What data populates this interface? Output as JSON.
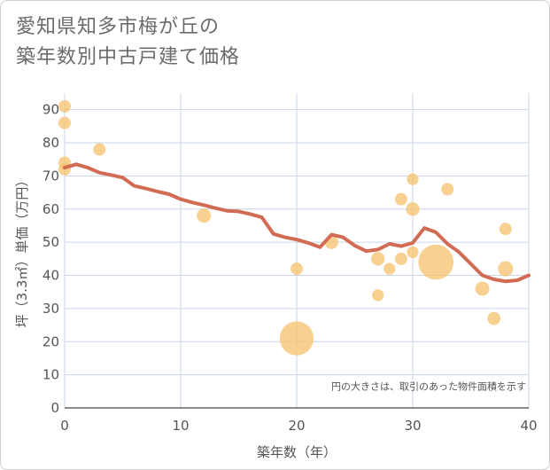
{
  "title_line1": "愛知県知多市梅が丘の",
  "title_line2": "築年数別中古戸建て価格",
  "chart_data": {
    "type": "scatter",
    "title": "愛知県知多市梅が丘の築年数別中古戸建て価格",
    "xlabel": "築年数（年）",
    "ylabel": "坪（3.3㎡）単価（万円）",
    "xlim": [
      0,
      40
    ],
    "ylim": [
      0,
      95
    ],
    "xticks": [
      0,
      10,
      20,
      30,
      40
    ],
    "yticks": [
      0,
      10,
      20,
      30,
      40,
      50,
      60,
      70,
      80,
      90
    ],
    "grid": true,
    "annotation": "円の大きさは、取引のあった物件面積を示す",
    "colors": {
      "bubble": "#f5c26b",
      "line": "#d26b54",
      "grid": "#c9d6e6"
    },
    "bubbles": [
      {
        "x": 0,
        "y": 91,
        "size": 1
      },
      {
        "x": 0,
        "y": 86,
        "size": 1
      },
      {
        "x": 0,
        "y": 74,
        "size": 1
      },
      {
        "x": 0,
        "y": 72,
        "size": 1
      },
      {
        "x": 3,
        "y": 78,
        "size": 1
      },
      {
        "x": 12,
        "y": 58,
        "size": 1.3
      },
      {
        "x": 20,
        "y": 42,
        "size": 1
      },
      {
        "x": 20,
        "y": 21,
        "size": 6
      },
      {
        "x": 23,
        "y": 50,
        "size": 1.2
      },
      {
        "x": 27,
        "y": 45,
        "size": 1.2
      },
      {
        "x": 27,
        "y": 34,
        "size": 0.9
      },
      {
        "x": 28,
        "y": 42,
        "size": 0.9
      },
      {
        "x": 29,
        "y": 63,
        "size": 1
      },
      {
        "x": 29,
        "y": 45,
        "size": 1
      },
      {
        "x": 30,
        "y": 69,
        "size": 0.9
      },
      {
        "x": 30,
        "y": 60,
        "size": 1.2
      },
      {
        "x": 30,
        "y": 47,
        "size": 0.9
      },
      {
        "x": 32,
        "y": 44,
        "size": 6.5
      },
      {
        "x": 33,
        "y": 66,
        "size": 1
      },
      {
        "x": 36,
        "y": 36,
        "size": 1.3
      },
      {
        "x": 37,
        "y": 27,
        "size": 1.1
      },
      {
        "x": 38,
        "y": 54,
        "size": 1
      },
      {
        "x": 38,
        "y": 42,
        "size": 1.5
      }
    ],
    "trend": {
      "x": [
        0,
        1,
        2,
        3,
        4,
        5,
        6,
        7,
        8,
        9,
        10,
        11,
        12,
        13,
        14,
        15,
        16,
        17,
        18,
        19,
        20,
        21,
        22,
        23,
        24,
        25,
        26,
        27,
        28,
        29,
        30,
        31,
        32,
        33,
        34,
        35,
        36,
        37,
        38,
        39,
        40
      ],
      "y": [
        72.5,
        73.5,
        72.5,
        71,
        70.3,
        69.5,
        67,
        66.2,
        65.3,
        64.5,
        63,
        62,
        61.2,
        60.3,
        59.5,
        59.3,
        58.5,
        57.5,
        52.5,
        51.5,
        50.8,
        49.8,
        48.5,
        52.3,
        51.5,
        49,
        47.3,
        47.8,
        49.5,
        48.8,
        49.8,
        54.3,
        53,
        49.5,
        47,
        43.5,
        40,
        38.8,
        38.2,
        38.5,
        40
      ]
    }
  }
}
